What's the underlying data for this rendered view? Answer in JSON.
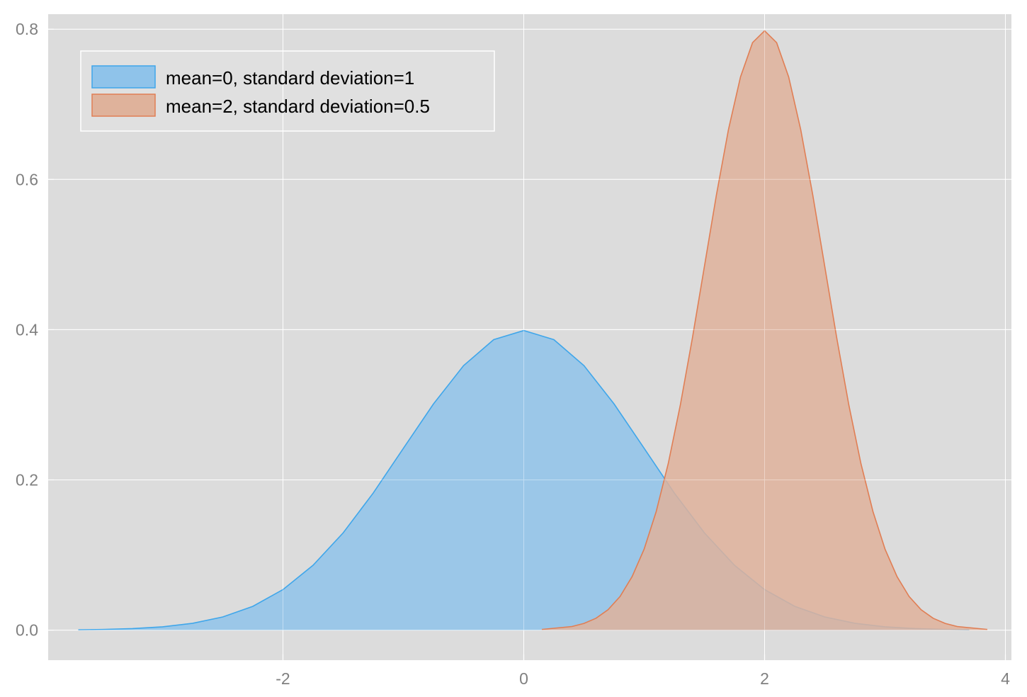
{
  "chart_data": {
    "type": "area",
    "title": "",
    "xlabel": "",
    "ylabel": "",
    "xlim": [
      -3.95,
      4.05
    ],
    "ylim": [
      -0.04,
      0.82
    ],
    "xticks": [
      {
        "value": -2,
        "label": "-2"
      },
      {
        "value": 0,
        "label": "0"
      },
      {
        "value": 2,
        "label": "2"
      },
      {
        "value": 4,
        "label": "4"
      }
    ],
    "yticks": [
      {
        "value": 0.0,
        "label": "0.0"
      },
      {
        "value": 0.2,
        "label": "0.2"
      },
      {
        "value": 0.4,
        "label": "0.4"
      },
      {
        "value": 0.6,
        "label": "0.6"
      },
      {
        "value": 0.8,
        "label": "0.8"
      }
    ],
    "grid": true,
    "legend_position": "top-left",
    "background_color": "#dcdcdc",
    "series": [
      {
        "name": "mean=0, standard deviation=1",
        "fill_color": "#8fc3ea",
        "line_color": "#3fa6ea",
        "x": [
          -3.7,
          -3.5,
          -3.25,
          -3.0,
          -2.75,
          -2.5,
          -2.25,
          -2.0,
          -1.75,
          -1.5,
          -1.25,
          -1.0,
          -0.75,
          -0.5,
          -0.25,
          0.0,
          0.25,
          0.5,
          0.75,
          1.0,
          1.25,
          1.5,
          1.75,
          2.0,
          2.25,
          2.5,
          2.75,
          3.0,
          3.25,
          3.5,
          3.7
        ],
        "y": [
          0.0004,
          0.0009,
          0.002,
          0.0044,
          0.0091,
          0.0175,
          0.0317,
          0.054,
          0.0863,
          0.1295,
          0.1826,
          0.242,
          0.3011,
          0.3521,
          0.3867,
          0.3989,
          0.3867,
          0.3521,
          0.3011,
          0.242,
          0.1826,
          0.1295,
          0.0863,
          0.054,
          0.0317,
          0.0175,
          0.0091,
          0.0044,
          0.002,
          0.0009,
          0.0004
        ]
      },
      {
        "name": "mean=2, standard deviation=0.5",
        "fill_color": "#dfb29b",
        "line_color": "#e07e54",
        "x": [
          0.15,
          0.4,
          0.5,
          0.6,
          0.7,
          0.8,
          0.9,
          1.0,
          1.1,
          1.2,
          1.3,
          1.4,
          1.5,
          1.6,
          1.7,
          1.8,
          1.9,
          2.0,
          2.1,
          2.2,
          2.3,
          2.4,
          2.5,
          2.6,
          2.7,
          2.8,
          2.9,
          3.0,
          3.1,
          3.2,
          3.3,
          3.4,
          3.5,
          3.6,
          3.85
        ],
        "y": [
          0.0009,
          0.0048,
          0.0089,
          0.0158,
          0.0272,
          0.0448,
          0.0713,
          0.108,
          0.1579,
          0.2218,
          0.2995,
          0.3884,
          0.4839,
          0.5794,
          0.6664,
          0.7365,
          0.7821,
          0.7979,
          0.7821,
          0.7365,
          0.6664,
          0.5794,
          0.4839,
          0.3884,
          0.2995,
          0.2218,
          0.1579,
          0.108,
          0.0713,
          0.0448,
          0.0272,
          0.0158,
          0.0089,
          0.0048,
          0.0009
        ]
      }
    ]
  }
}
